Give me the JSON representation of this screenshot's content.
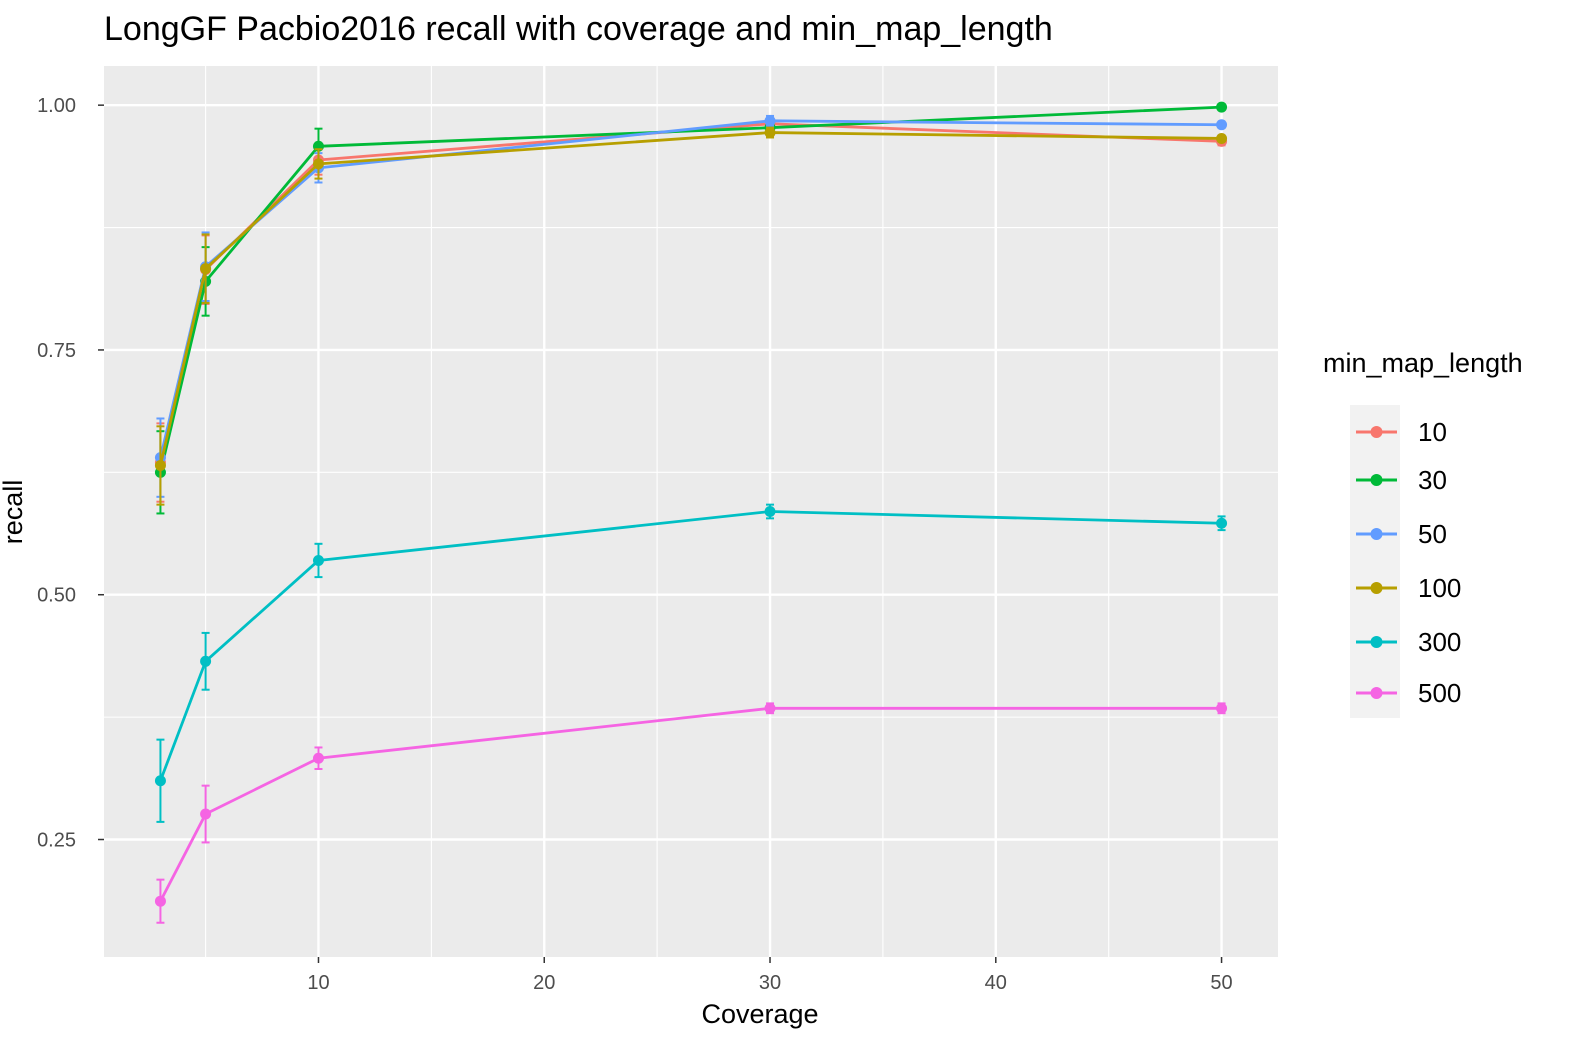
{
  "chart_data": {
    "type": "line",
    "title": "LongGF Pacbio2016 recall with coverage and min_map_length",
    "xlabel": "Coverage",
    "ylabel": "recall",
    "xlim": [
      0.5,
      52.5
    ],
    "ylim": [
      0.13,
      1.04
    ],
    "x_ticks": [
      10,
      20,
      30,
      40,
      50
    ],
    "x_tick_labels": [
      "10",
      "20",
      "30",
      "40",
      "50"
    ],
    "y_ticks": [
      0.25,
      0.5,
      0.75,
      1.0
    ],
    "y_tick_labels": [
      "0.25",
      "0.50",
      "0.75",
      "1.00"
    ],
    "grid": true,
    "legend_title": "min_map_length",
    "legend_position": "right",
    "x": [
      3,
      5,
      10,
      30,
      50
    ],
    "series": [
      {
        "name": "10",
        "color": "#F8766D",
        "values": [
          0.635,
          0.832,
          0.944,
          0.981,
          0.963
        ],
        "errors": [
          0.04,
          0.035,
          0.015,
          0.005,
          0.004
        ]
      },
      {
        "name": "30",
        "color": "#00BA38",
        "values": [
          0.625,
          0.82,
          0.958,
          0.977,
          0.998
        ],
        "errors": [
          0.042,
          0.035,
          0.018,
          0.005,
          0.003
        ]
      },
      {
        "name": "50",
        "color": "#619CFF",
        "values": [
          0.64,
          0.835,
          0.936,
          0.984,
          0.98
        ],
        "errors": [
          0.04,
          0.035,
          0.015,
          0.005,
          0.003
        ]
      },
      {
        "name": "100",
        "color": "#B79F00",
        "values": [
          0.632,
          0.833,
          0.94,
          0.972,
          0.966
        ],
        "errors": [
          0.04,
          0.035,
          0.015,
          0.005,
          0.003
        ]
      },
      {
        "name": "300",
        "color": "#00BFC4",
        "values": [
          0.31,
          0.432,
          0.535,
          0.585,
          0.573
        ],
        "errors": [
          0.042,
          0.029,
          0.017,
          0.007,
          0.007
        ]
      },
      {
        "name": "500",
        "color": "#F564E3",
        "values": [
          0.187,
          0.276,
          0.333,
          0.384,
          0.384
        ],
        "errors": [
          0.022,
          0.029,
          0.011,
          0.005,
          0.005
        ]
      }
    ]
  }
}
